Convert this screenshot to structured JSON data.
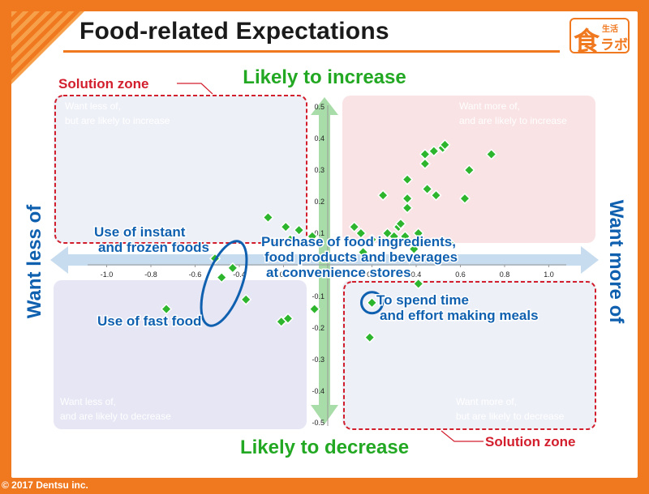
{
  "header": {
    "title": "Food-related Expectations"
  },
  "logo": {
    "glyph": "食",
    "small": "生活",
    "mid": "ラボ"
  },
  "footer": {
    "copyright": "© 2017 Dentsu inc."
  },
  "chart_data": {
    "type": "scatter",
    "title": "Food-related Expectations",
    "xlim": [
      -1.1,
      1.1
    ],
    "ylim": [
      -0.5,
      0.5
    ],
    "x_ticks": [
      "-1.0",
      "-0.8",
      "-0.6",
      "-0.4",
      "-0.2",
      "0.2",
      "0.4",
      "0.6",
      "0.8",
      "1.0"
    ],
    "x_tick_values": [
      -1.0,
      -0.8,
      -0.6,
      -0.4,
      -0.2,
      0.2,
      0.4,
      0.6,
      0.8,
      1.0
    ],
    "y_ticks": [
      "0.5",
      "0.4",
      "0.3",
      "0.2",
      "0.1",
      "-0.1",
      "-0.2",
      "-0.3",
      "-0.4",
      "-0.5"
    ],
    "y_tick_values": [
      0.5,
      0.4,
      0.3,
      0.2,
      0.1,
      -0.1,
      -0.2,
      -0.3,
      -0.4,
      -0.5
    ],
    "axis_labels": {
      "top": "Likely to increase",
      "bottom": "Likely to decrease",
      "left": "Want less of",
      "right": "Want more of"
    },
    "quadrants": {
      "top_left": [
        "Want less of,",
        "but are likely to increase"
      ],
      "top_right": [
        "Want more of,",
        "and are likely to increase"
      ],
      "bottom_left": [
        "Want less of,",
        "and are likely to decrease"
      ],
      "bottom_right": [
        "Want more of,",
        "but are likely to decrease"
      ]
    },
    "solution_zone_labels": {
      "top_left": "Solution zone",
      "bottom_right": "Solution zone"
    },
    "annotations": {
      "instant": [
        "Use of instant",
        "and frozen foods"
      ],
      "convenience": [
        "Purchase of food ingredients,",
        "food products and beverages",
        "at convenience stores"
      ],
      "fast_food": "Use of fast food",
      "spend_time": [
        "To spend time",
        "and effort making meals"
      ]
    },
    "points": [
      {
        "x": -0.51,
        "y": 0.02
      },
      {
        "x": -0.48,
        "y": -0.04
      },
      {
        "x": -0.73,
        "y": -0.14
      },
      {
        "x": -0.43,
        "y": -0.01
      },
      {
        "x": -0.37,
        "y": -0.11
      },
      {
        "x": -0.27,
        "y": 0.15
      },
      {
        "x": -0.19,
        "y": 0.12
      },
      {
        "x": -0.17,
        "y": 0.08
      },
      {
        "x": -0.13,
        "y": 0.11
      },
      {
        "x": -0.21,
        "y": -0.18
      },
      {
        "x": -0.18,
        "y": -0.17
      },
      {
        "x": -0.07,
        "y": 0.09
      },
      {
        "x": -0.06,
        "y": -0.14
      },
      {
        "x": 0.12,
        "y": 0.12
      },
      {
        "x": 0.15,
        "y": 0.1
      },
      {
        "x": 0.16,
        "y": 0.04
      },
      {
        "x": 0.2,
        "y": 0.08
      },
      {
        "x": 0.25,
        "y": 0.22
      },
      {
        "x": 0.27,
        "y": 0.1
      },
      {
        "x": 0.3,
        "y": 0.09
      },
      {
        "x": 0.32,
        "y": 0.12
      },
      {
        "x": 0.33,
        "y": 0.13
      },
      {
        "x": 0.36,
        "y": 0.21
      },
      {
        "x": 0.36,
        "y": 0.27
      },
      {
        "x": 0.36,
        "y": 0.18
      },
      {
        "x": 0.35,
        "y": 0.09
      },
      {
        "x": 0.39,
        "y": 0.05
      },
      {
        "x": 0.41,
        "y": 0.1
      },
      {
        "x": 0.41,
        "y": -0.06
      },
      {
        "x": 0.44,
        "y": 0.35
      },
      {
        "x": 0.44,
        "y": 0.32
      },
      {
        "x": 0.45,
        "y": 0.24
      },
      {
        "x": 0.48,
        "y": 0.36
      },
      {
        "x": 0.49,
        "y": 0.22
      },
      {
        "x": 0.52,
        "y": 0.37
      },
      {
        "x": 0.53,
        "y": 0.38
      },
      {
        "x": 0.55,
        "y": 0.07
      },
      {
        "x": 0.62,
        "y": 0.21
      },
      {
        "x": 0.64,
        "y": 0.3
      },
      {
        "x": 0.74,
        "y": 0.35
      },
      {
        "x": 0.2,
        "y": -0.12
      },
      {
        "x": 0.19,
        "y": -0.23
      }
    ],
    "highlighted_point": {
      "x": 0.2,
      "y": -0.12
    },
    "colors": {
      "marker": "#2db52d",
      "marker_edge": "#1f8a1f",
      "label_green": "#22a822",
      "label_blue": "#1060b0",
      "dashed_red": "#d21e2d",
      "quadrant_pink": "#f9e3e5",
      "quadrant_lavender": "#e6e6f5",
      "quadrant_blue": "#eef0f8",
      "axis_arrow": "#c8dcef",
      "axis_arrow_v": "#a8dca8",
      "orange": "#f0781e"
    }
  }
}
